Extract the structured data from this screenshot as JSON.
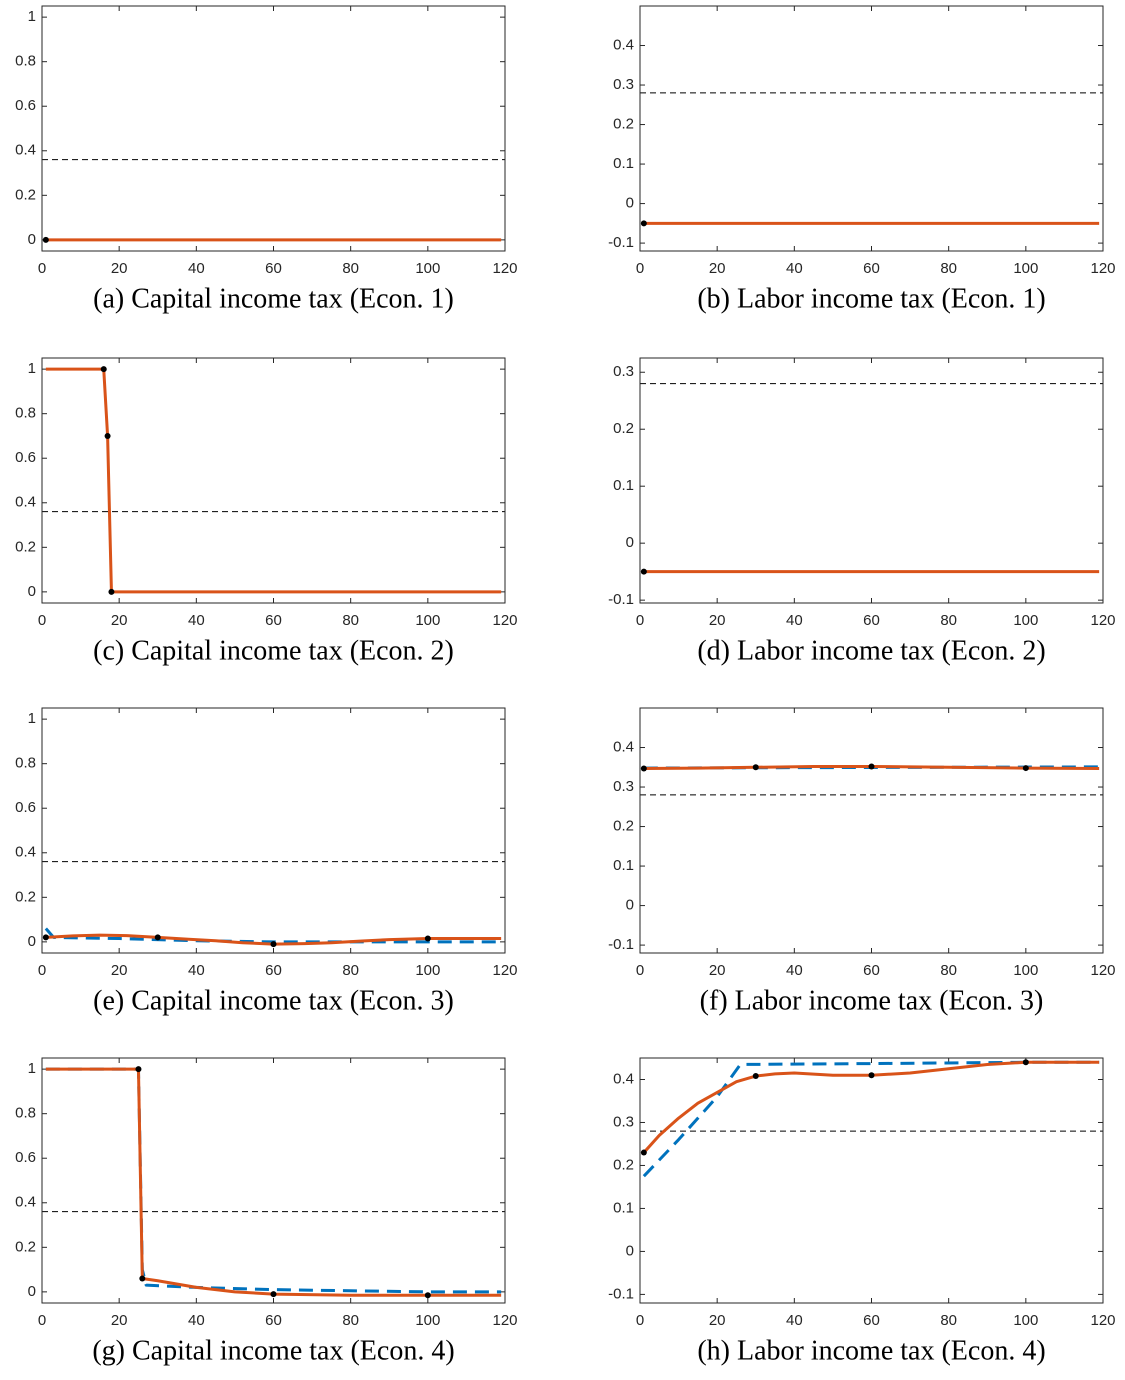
{
  "chart_data": [
    {
      "type": "line",
      "caption": "(a) Capital income tax (Econ. 1)",
      "xlim": [
        0,
        120
      ],
      "xticks": [
        0,
        20,
        40,
        60,
        80,
        100,
        120
      ],
      "ylim": [
        -0.05,
        1.05
      ],
      "yticks": [
        0,
        0.2,
        0.4,
        0.6,
        0.8,
        1
      ],
      "series": [
        {
          "color": "#000000",
          "line": "dashed",
          "x": [
            0,
            120
          ],
          "values": [
            0.36,
            0.36
          ]
        },
        {
          "color": "#d95319",
          "line": "solid",
          "x": [
            1,
            119
          ],
          "values": [
            0,
            0
          ]
        },
        {
          "color": "#000000",
          "line": "none",
          "marker": true,
          "x": [
            1
          ],
          "values": [
            0
          ]
        }
      ]
    },
    {
      "type": "line",
      "caption": "(b) Labor income tax (Econ. 1)",
      "xlim": [
        0,
        120
      ],
      "xticks": [
        0,
        20,
        40,
        60,
        80,
        100,
        120
      ],
      "ylim": [
        -0.12,
        0.5
      ],
      "yticks": [
        -0.1,
        0,
        0.1,
        0.2,
        0.3,
        0.4
      ],
      "series": [
        {
          "color": "#000000",
          "line": "dashed",
          "x": [
            0,
            120
          ],
          "values": [
            0.28,
            0.28
          ]
        },
        {
          "color": "#d95319",
          "line": "solid",
          "x": [
            1,
            119
          ],
          "values": [
            -0.05,
            -0.05
          ]
        },
        {
          "color": "#000000",
          "line": "none",
          "marker": true,
          "x": [
            1
          ],
          "values": [
            -0.05
          ]
        }
      ]
    },
    {
      "type": "line",
      "caption": "(c) Capital income tax (Econ. 2)",
      "xlim": [
        0,
        120
      ],
      "xticks": [
        0,
        20,
        40,
        60,
        80,
        100,
        120
      ],
      "ylim": [
        -0.05,
        1.05
      ],
      "yticks": [
        0,
        0.2,
        0.4,
        0.6,
        0.8,
        1
      ],
      "series": [
        {
          "color": "#000000",
          "line": "dashed",
          "x": [
            0,
            120
          ],
          "values": [
            0.36,
            0.36
          ]
        },
        {
          "color": "#d95319",
          "line": "solid",
          "x": [
            1,
            16,
            17,
            18,
            119
          ],
          "values": [
            1,
            1,
            0.7,
            0,
            0
          ]
        },
        {
          "color": "#000000",
          "line": "none",
          "marker": true,
          "x": [
            16,
            17,
            18
          ],
          "values": [
            1,
            0.7,
            0
          ]
        }
      ]
    },
    {
      "type": "line",
      "caption": "(d) Labor income tax (Econ. 2)",
      "xlim": [
        0,
        120
      ],
      "xticks": [
        0,
        20,
        40,
        60,
        80,
        100,
        120
      ],
      "ylim": [
        -0.105,
        0.325
      ],
      "yticks": [
        -0.1,
        0,
        0.1,
        0.2,
        0.3
      ],
      "series": [
        {
          "color": "#000000",
          "line": "dashed",
          "x": [
            0,
            120
          ],
          "values": [
            0.28,
            0.28
          ]
        },
        {
          "color": "#d95319",
          "line": "solid",
          "x": [
            1,
            119
          ],
          "values": [
            -0.05,
            -0.05
          ]
        },
        {
          "color": "#000000",
          "line": "none",
          "marker": true,
          "x": [
            1
          ],
          "values": [
            -0.05
          ]
        }
      ]
    },
    {
      "type": "line",
      "caption": "(e) Capital income tax (Econ. 3)",
      "xlim": [
        0,
        120
      ],
      "xticks": [
        0,
        20,
        40,
        60,
        80,
        100,
        120
      ],
      "ylim": [
        -0.05,
        1.05
      ],
      "yticks": [
        0,
        0.2,
        0.4,
        0.6,
        0.8,
        1
      ],
      "series": [
        {
          "color": "#000000",
          "line": "dashed",
          "x": [
            0,
            120
          ],
          "values": [
            0.36,
            0.36
          ]
        },
        {
          "color": "#0072bd",
          "line": "dashed",
          "x": [
            1,
            3,
            20,
            40,
            60,
            80,
            119
          ],
          "values": [
            0.06,
            0.02,
            0.015,
            0.005,
            0,
            0,
            0
          ]
        },
        {
          "color": "#d95319",
          "line": "solid",
          "x": [
            1,
            8,
            15,
            22,
            30,
            38,
            45,
            52,
            60,
            68,
            75,
            83,
            90,
            100,
            110,
            119
          ],
          "values": [
            0.02,
            0.027,
            0.03,
            0.028,
            0.02,
            0.012,
            0.005,
            -0.004,
            -0.01,
            -0.008,
            -0.004,
            0.004,
            0.01,
            0.015,
            0.015,
            0.015
          ]
        },
        {
          "color": "#000000",
          "line": "none",
          "marker": true,
          "x": [
            1,
            30,
            60,
            100
          ],
          "values": [
            0.02,
            0.02,
            -0.01,
            0.015
          ]
        }
      ]
    },
    {
      "type": "line",
      "caption": "(f) Labor income tax (Econ. 3)",
      "xlim": [
        0,
        120
      ],
      "xticks": [
        0,
        20,
        40,
        60,
        80,
        100,
        120
      ],
      "ylim": [
        -0.12,
        0.5
      ],
      "yticks": [
        -0.1,
        0,
        0.1,
        0.2,
        0.3,
        0.4
      ],
      "series": [
        {
          "color": "#000000",
          "line": "dashed",
          "x": [
            0,
            120
          ],
          "values": [
            0.28,
            0.28
          ]
        },
        {
          "color": "#0072bd",
          "line": "dashed",
          "x": [
            1,
            40,
            80,
            119
          ],
          "values": [
            0.348,
            0.349,
            0.35,
            0.351
          ]
        },
        {
          "color": "#d95319",
          "line": "solid",
          "x": [
            1,
            15,
            30,
            45,
            60,
            80,
            100,
            119
          ],
          "values": [
            0.347,
            0.348,
            0.35,
            0.352,
            0.352,
            0.35,
            0.348,
            0.347
          ]
        },
        {
          "color": "#000000",
          "line": "none",
          "marker": true,
          "x": [
            1,
            30,
            60,
            100
          ],
          "values": [
            0.347,
            0.35,
            0.352,
            0.348
          ]
        }
      ]
    },
    {
      "type": "line",
      "caption": "(g) Capital income tax (Econ. 4)",
      "xlim": [
        0,
        120
      ],
      "xticks": [
        0,
        20,
        40,
        60,
        80,
        100,
        120
      ],
      "ylim": [
        -0.05,
        1.05
      ],
      "yticks": [
        0,
        0.2,
        0.4,
        0.6,
        0.8,
        1
      ],
      "series": [
        {
          "color": "#000000",
          "line": "dashed",
          "x": [
            0,
            120
          ],
          "values": [
            0.36,
            0.36
          ]
        },
        {
          "color": "#0072bd",
          "line": "dashed",
          "x": [
            1,
            25,
            26,
            27,
            40,
            60,
            80,
            100,
            119
          ],
          "values": [
            1,
            1,
            0.1,
            0.03,
            0.02,
            0.01,
            0.005,
            0,
            0
          ]
        },
        {
          "color": "#d95319",
          "line": "solid",
          "x": [
            1,
            25,
            26,
            30,
            40,
            50,
            60,
            80,
            100,
            119
          ],
          "values": [
            1,
            1,
            0.06,
            0.05,
            0.02,
            0,
            -0.01,
            -0.015,
            -0.015,
            -0.015
          ]
        },
        {
          "color": "#000000",
          "line": "none",
          "marker": true,
          "x": [
            25,
            26,
            60,
            100
          ],
          "values": [
            1,
            0.06,
            -0.01,
            -0.015
          ]
        }
      ]
    },
    {
      "type": "line",
      "caption": "(h) Labor income tax (Econ. 4)",
      "xlim": [
        0,
        120
      ],
      "xticks": [
        0,
        20,
        40,
        60,
        80,
        100,
        120
      ],
      "ylim": [
        -0.12,
        0.45
      ],
      "yticks": [
        -0.1,
        0,
        0.1,
        0.2,
        0.3,
        0.4
      ],
      "series": [
        {
          "color": "#000000",
          "line": "dashed",
          "x": [
            0,
            120
          ],
          "values": [
            0.28,
            0.28
          ]
        },
        {
          "color": "#0072bd",
          "line": "dashed",
          "x": [
            1,
            10,
            20,
            26,
            60,
            100,
            119
          ],
          "values": [
            0.175,
            0.26,
            0.36,
            0.435,
            0.437,
            0.44,
            0.44
          ]
        },
        {
          "color": "#d95319",
          "line": "solid",
          "x": [
            1,
            5,
            10,
            15,
            20,
            25,
            30,
            35,
            40,
            50,
            60,
            70,
            80,
            90,
            100,
            110,
            119
          ],
          "values": [
            0.23,
            0.27,
            0.31,
            0.345,
            0.37,
            0.395,
            0.408,
            0.413,
            0.415,
            0.41,
            0.41,
            0.415,
            0.425,
            0.435,
            0.44,
            0.44,
            0.44
          ]
        },
        {
          "color": "#000000",
          "line": "none",
          "marker": true,
          "x": [
            1,
            30,
            60,
            100
          ],
          "values": [
            0.23,
            0.408,
            0.41,
            0.44
          ]
        }
      ]
    }
  ]
}
